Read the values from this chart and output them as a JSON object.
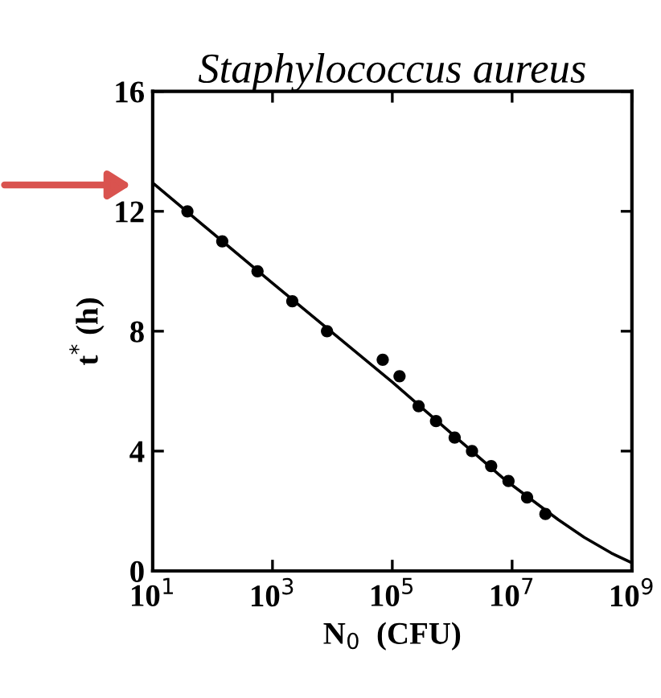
{
  "chart_data": {
    "type": "scatter",
    "title": "Staphylococcus aureus",
    "xlabel": "N$_{0}$  (CFU)",
    "ylabel": "t$^{*}$ (h)",
    "log": "x",
    "xlim": [
      10,
      1000000000
    ],
    "ylim": [
      0,
      16
    ],
    "xticks": [
      {
        "value": 10,
        "label": "10$^{1}$"
      },
      {
        "value": 1000,
        "label": "10$^{3}$"
      },
      {
        "value": 100000,
        "label": "10$^{5}$"
      },
      {
        "value": 10000000,
        "label": "10$^{7}$"
      },
      {
        "value": 1000000000,
        "label": "10$^{9}$"
      }
    ],
    "yticks": [
      0,
      4,
      8,
      12,
      16
    ],
    "grid": false,
    "legend": false,
    "series": [
      {
        "color": "#000000",
        "marker": "circle",
        "x": [
          38,
          145,
          562,
          2140,
          8130,
          69200,
          132000,
          275000,
          537000,
          1100000,
          2140000,
          4470000,
          8700000,
          17800000,
          36000000
        ],
        "values": [
          12.0,
          11.0,
          10.0,
          9.0,
          8.0,
          7.05,
          6.5,
          5.5,
          5.0,
          4.45,
          4.0,
          3.5,
          3.0,
          2.45,
          1.9
        ]
      },
      {
        "type": "line",
        "color": "#000000",
        "marker": "none",
        "line_style": "solid",
        "x": [
          10,
          1000,
          100000,
          7400000,
          59000000,
          160000000,
          460000000,
          1000000000
        ],
        "values": [
          12.95,
          9.6,
          6.3,
          3.06,
          1.71,
          1.12,
          0.59,
          0.27
        ]
      }
    ]
  }
}
